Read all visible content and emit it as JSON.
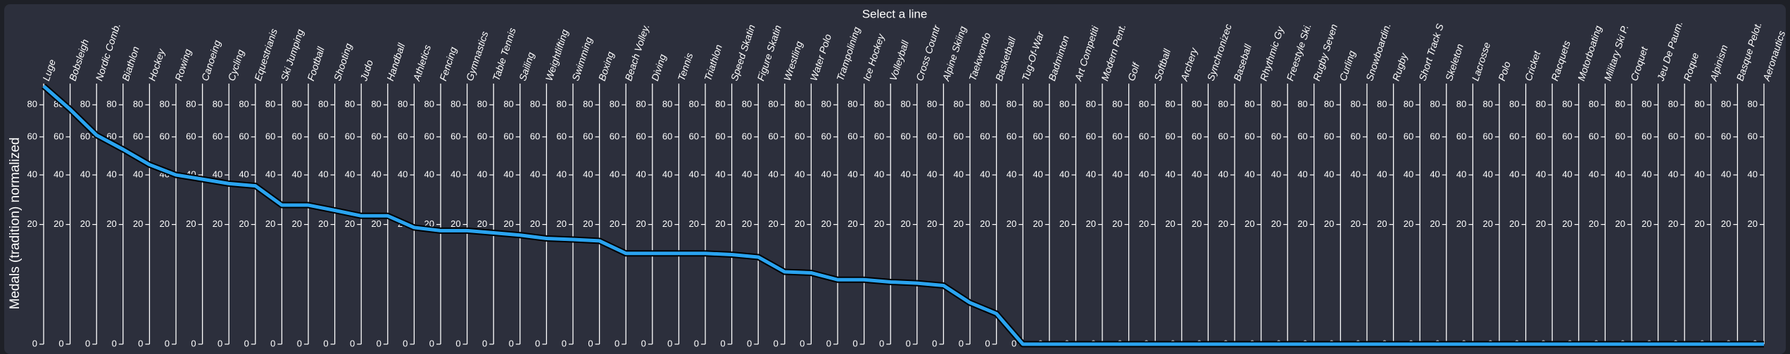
{
  "chart_data": {
    "type": "line",
    "title": "Select a line",
    "y_label": "Medals (tradition) normalized",
    "categories": [
      "Luge",
      "Bobsleigh",
      "Nordic Comb.",
      "Biathlon",
      "Hockey",
      "Rowing",
      "Canoeing",
      "Cycling",
      "Equestrianis",
      "Ski Jumping",
      "Football",
      "Shooting",
      "Judo",
      "Handball",
      "Athletics",
      "Fencing",
      "Gymnastics",
      "Table Tennis",
      "Sailing",
      "Weightlifting",
      "Swimming",
      "Boxing",
      "Beach Volley.",
      "Diving",
      "Tennis",
      "Triathlon",
      "Speed Skatin",
      "Figure Skatin",
      "Wrestling",
      "Water Polo",
      "Trampolining",
      "Ice Hockey",
      "Volleyball",
      "Cross Countr",
      "Alpine Skiing",
      "Taekwondo",
      "Basketball",
      "Tug-Of-War",
      "Badminton",
      "Art Competiti",
      "Modern Pent.",
      "Golf",
      "Softball",
      "Archery",
      "Synchronizec",
      "Baseball",
      "Rhythmic Gy",
      "Freestyle Ski.",
      "Rugby Seven",
      "Curling",
      "Snowboardin.",
      "Rugby",
      "Short Track S",
      "Skeleton",
      "Lacrosse",
      "Polo",
      "Cricket",
      "Racquets",
      "Motorboating",
      "Military Ski P.",
      "Croquet",
      "Jeu De Paum.",
      "Roque",
      "Alpinism",
      "Basque Pelot.",
      "Aeronautics"
    ],
    "values": [
      93,
      77,
      61,
      53,
      45,
      40,
      38,
      36,
      35,
      27,
      27,
      25,
      23,
      23,
      19,
      18,
      18,
      17.3,
      16.6,
      15.6,
      15.3,
      14.9,
      11.5,
      11.5,
      11.5,
      11.5,
      11.2,
      10.6,
      7.3,
      7.1,
      5.8,
      5.8,
      5.4,
      5.2,
      4.8,
      2.4,
      1.3,
      0,
      0,
      0,
      0,
      0,
      0,
      0,
      0,
      0,
      0,
      0,
      0,
      0,
      0,
      0,
      0,
      0,
      0,
      0,
      0,
      0,
      0,
      0,
      0,
      0,
      0,
      0,
      0,
      0
    ],
    "color": "#2aa3ef",
    "ylim": [
      0,
      100
    ],
    "yticks": [
      0,
      20,
      40,
      60,
      80
    ],
    "yscale": "sqrt"
  }
}
